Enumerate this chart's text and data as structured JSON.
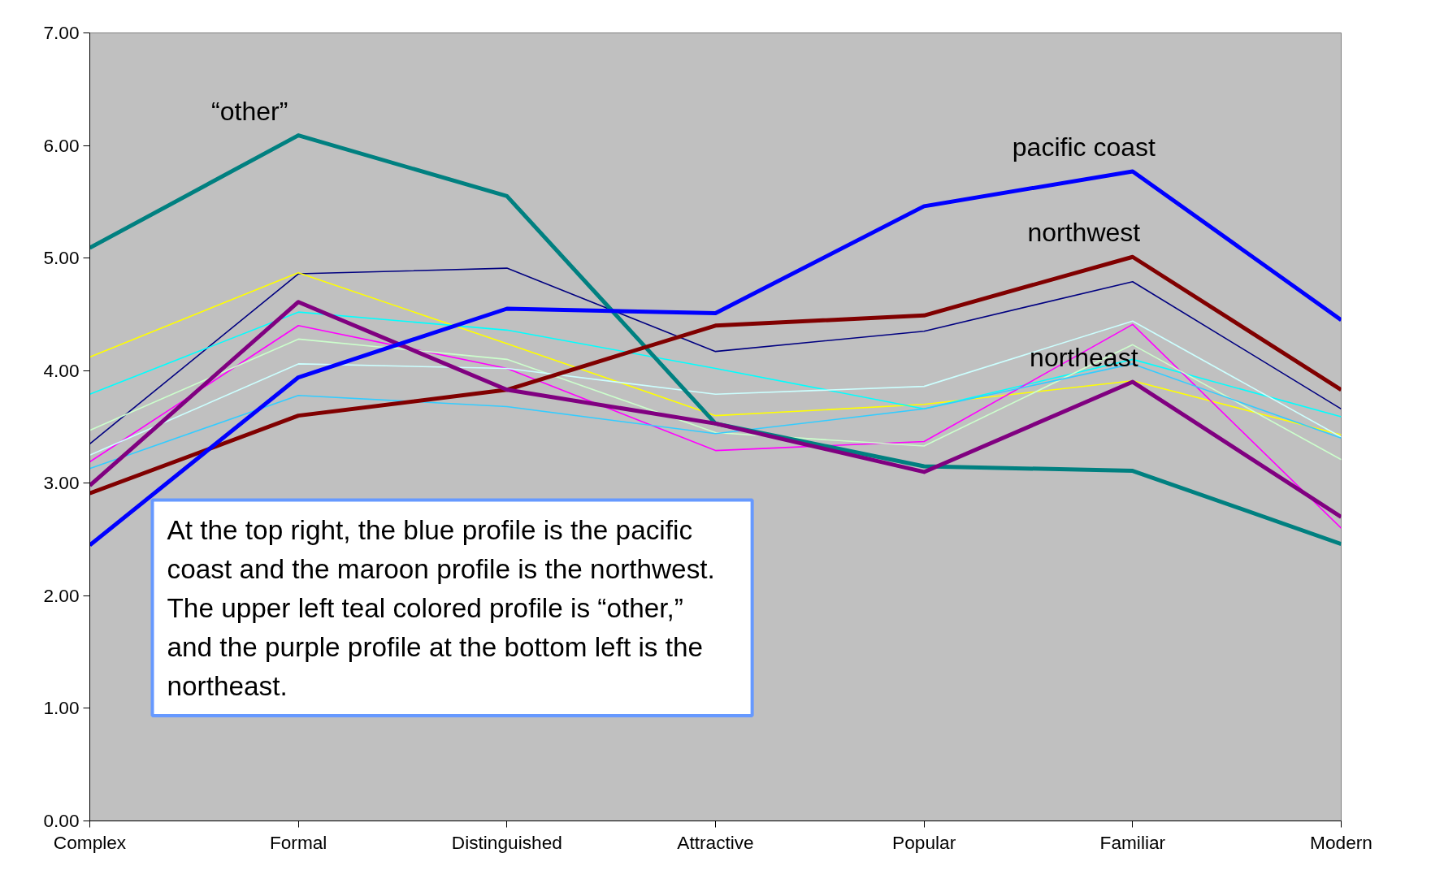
{
  "chart_data": {
    "type": "line",
    "categories": [
      "Complex",
      "Formal",
      "Distinguished",
      "Attractive",
      "Popular",
      "Familiar",
      "Modern"
    ],
    "ylim": [
      0,
      7
    ],
    "yticks": [
      {
        "value": 0,
        "label": "0.00"
      },
      {
        "value": 1,
        "label": "1.00"
      },
      {
        "value": 2,
        "label": "2.00"
      },
      {
        "value": 3,
        "label": "3.00"
      },
      {
        "value": 4,
        "label": "4.00"
      },
      {
        "value": 5,
        "label": "5.00"
      },
      {
        "value": 6,
        "label": "6.00"
      },
      {
        "value": 7,
        "label": "7.00"
      }
    ],
    "grid": false,
    "marker": "none",
    "line_style": "solid",
    "series": [
      {
        "color": "#000080",
        "values": [
          3.35,
          4.86,
          4.91,
          4.17,
          4.35,
          4.79,
          3.66
        ]
      },
      {
        "color": "#ffff00",
        "values": [
          4.12,
          4.87,
          4.24,
          3.6,
          3.7,
          3.91,
          3.43
        ]
      },
      {
        "color": "#00ffff",
        "values": [
          3.79,
          4.52,
          4.36,
          4.02,
          3.66,
          4.1,
          3.59
        ]
      },
      {
        "color": "#ff00ff",
        "values": [
          3.19,
          4.4,
          4.02,
          3.29,
          3.37,
          4.41,
          2.6
        ]
      },
      {
        "color": "#ccffcc",
        "values": [
          3.47,
          4.28,
          4.1,
          3.45,
          3.33,
          4.23,
          3.21
        ]
      },
      {
        "color": "#ccffff",
        "values": [
          3.25,
          4.06,
          4.02,
          3.79,
          3.86,
          4.44,
          3.41
        ]
      },
      {
        "color": "#33ccff",
        "values": [
          3.13,
          3.78,
          3.68,
          3.44,
          3.66,
          4.06,
          3.4
        ]
      },
      {
        "name": "“other”",
        "color": "#008080",
        "values": [
          5.09,
          6.09,
          5.55,
          3.53,
          3.15,
          3.11,
          2.46
        ]
      },
      {
        "name": "northwest",
        "color": "#800000",
        "values": [
          2.91,
          3.6,
          3.83,
          4.4,
          4.49,
          5.01,
          3.83
        ]
      },
      {
        "name": "northeast",
        "color": "#800080",
        "values": [
          2.98,
          4.61,
          3.83,
          3.53,
          3.1,
          3.9,
          2.7
        ]
      },
      {
        "name": "pacific coast",
        "color": "#0000ff",
        "values": [
          2.45,
          3.94,
          4.55,
          4.51,
          5.46,
          5.77,
          4.45
        ]
      }
    ],
    "annotations": [
      "At the top right, the blue profile is the pacific coast and the maroon profile is the northwest.",
      "The upper left teal colored profile is “other,” and the purple profile at the bottom left is the northeast."
    ]
  }
}
